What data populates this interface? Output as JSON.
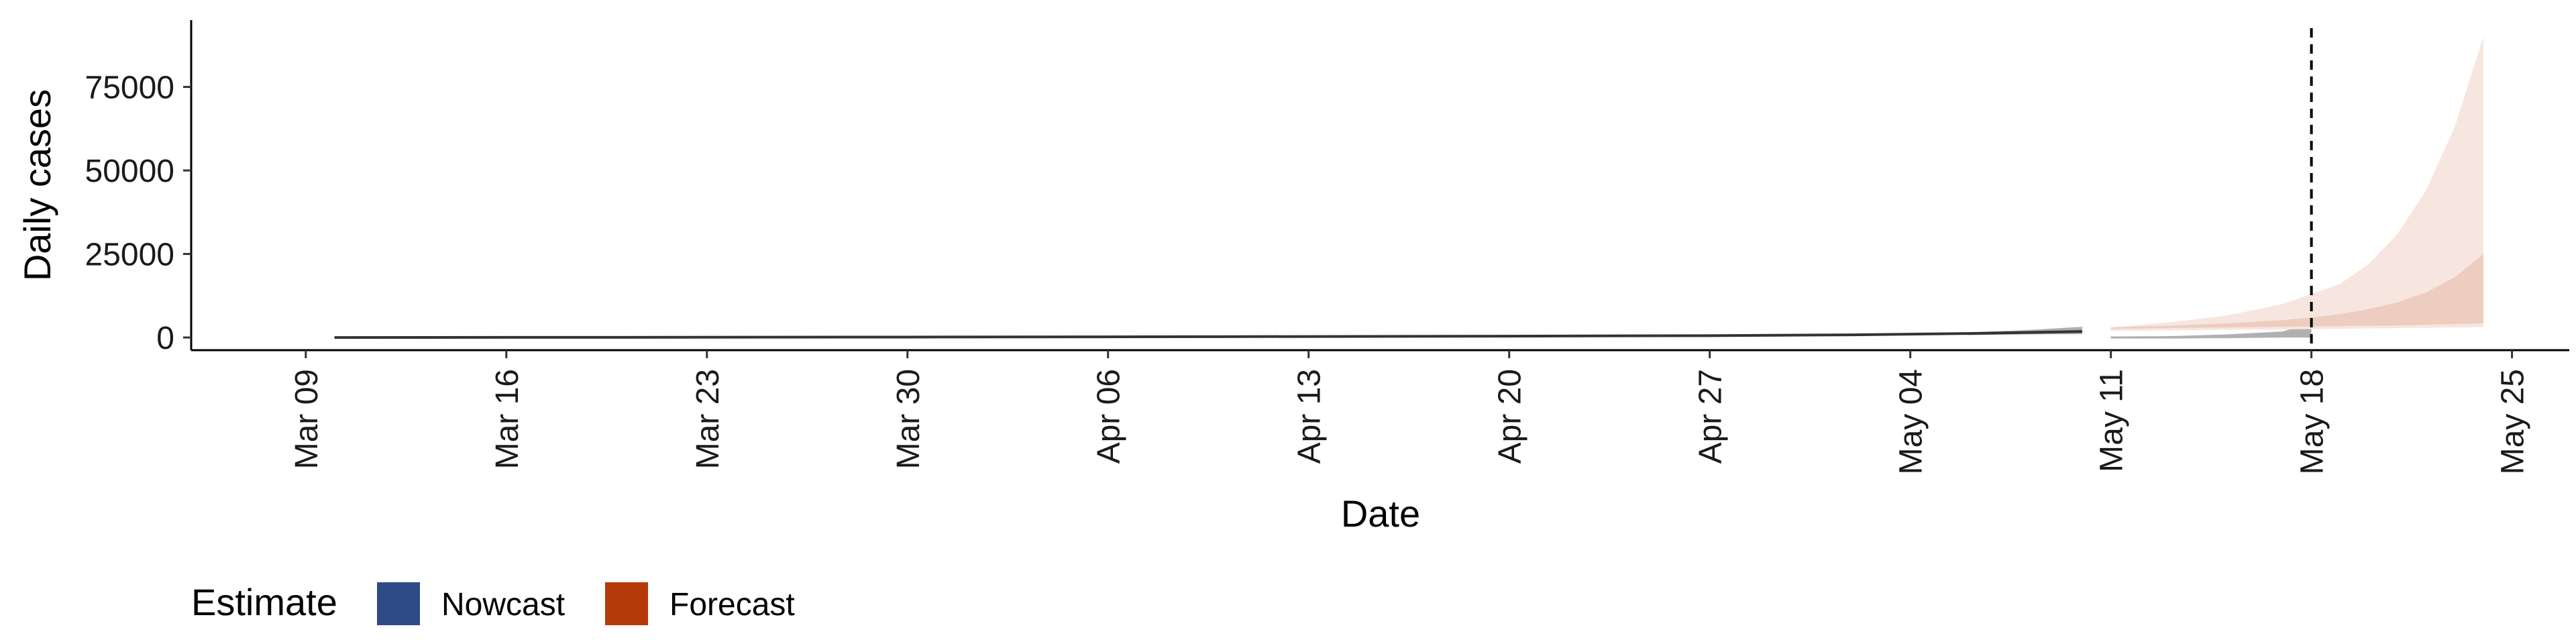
{
  "chart_data": {
    "type": "line",
    "xlabel": "Date",
    "ylabel": "Daily cases",
    "xlim": [
      "2020-03-05",
      "2020-05-27"
    ],
    "ylim": [
      -3800,
      95000
    ],
    "x_ticks": [
      "2020-03-09",
      "2020-03-16",
      "2020-03-23",
      "2020-03-30",
      "2020-04-06",
      "2020-04-13",
      "2020-04-20",
      "2020-04-27",
      "2020-05-04",
      "2020-05-11",
      "2020-05-18",
      "2020-05-25"
    ],
    "x_tick_labels": [
      "Mar 09",
      "Mar 16",
      "Mar 23",
      "Mar 30",
      "Apr 06",
      "Apr 13",
      "Apr 20",
      "Apr 27",
      "May 04",
      "May 11",
      "May 18",
      "May 25"
    ],
    "y_ticks": [
      0,
      25000,
      50000,
      75000
    ],
    "y_tick_labels": [
      "0",
      "25000",
      "50000",
      "75000"
    ],
    "vline_date": "2020-05-18",
    "grid": false,
    "legend": {
      "title": "Estimate",
      "position": "bottom-left",
      "entries": [
        {
          "label": "Nowcast",
          "color": "#2f4b87"
        },
        {
          "label": "Forecast",
          "color": "#b53a0a"
        }
      ]
    },
    "series": [
      {
        "kind": "estimate_line",
        "color": "#333333",
        "x": [
          "2020-03-10",
          "2020-03-20",
          "2020-03-30",
          "2020-04-10",
          "2020-04-20",
          "2020-04-27",
          "2020-05-02",
          "2020-05-06",
          "2020-05-10"
        ],
        "y": [
          0,
          50,
          120,
          250,
          400,
          550,
          800,
          1200,
          1800
        ]
      },
      {
        "kind": "nowcast_band",
        "color": "#b0b0b0",
        "x": [
          "2020-05-06",
          "2020-05-08",
          "2020-05-10"
        ],
        "lower": [
          700,
          900,
          1000
        ],
        "upper": [
          1500,
          2200,
          3200
        ]
      },
      {
        "kind": "nowcast_band",
        "color": "#b0b0b0",
        "x": [
          "2020-05-11",
          "2020-05-13",
          "2020-05-15",
          "2020-05-17",
          "2020-05-18"
        ],
        "lower": [
          -300,
          -300,
          -200,
          0,
          0
        ],
        "upper": [
          300,
          400,
          900,
          1800,
          4500
        ]
      },
      {
        "kind": "forecast_band_outer",
        "color": "#f7e6df",
        "x": [
          "2020-05-11",
          "2020-05-13",
          "2020-05-15",
          "2020-05-17",
          "2020-05-18",
          "2020-05-19",
          "2020-05-20",
          "2020-05-21",
          "2020-05-22",
          "2020-05-23",
          "2020-05-24"
        ],
        "lower": [
          2000,
          2100,
          2300,
          2400,
          2500,
          2600,
          2700,
          2800,
          2900,
          3000,
          3100
        ],
        "upper": [
          3000,
          4500,
          6500,
          10000,
          13000,
          16000,
          22000,
          31000,
          44000,
          63000,
          90000
        ]
      },
      {
        "kind": "forecast_band_inner",
        "color": "#edcdbf",
        "x": [
          "2020-05-11",
          "2020-05-13",
          "2020-05-15",
          "2020-05-17",
          "2020-05-18",
          "2020-05-19",
          "2020-05-20",
          "2020-05-21",
          "2020-05-22",
          "2020-05-23",
          "2020-05-24"
        ],
        "lower": [
          2600,
          2800,
          3000,
          3200,
          3300,
          3400,
          3500,
          3600,
          3800,
          4000,
          4200
        ],
        "upper": [
          3000,
          3500,
          4200,
          5200,
          6000,
          7000,
          8500,
          10500,
          13500,
          18000,
          25000
        ]
      }
    ]
  }
}
